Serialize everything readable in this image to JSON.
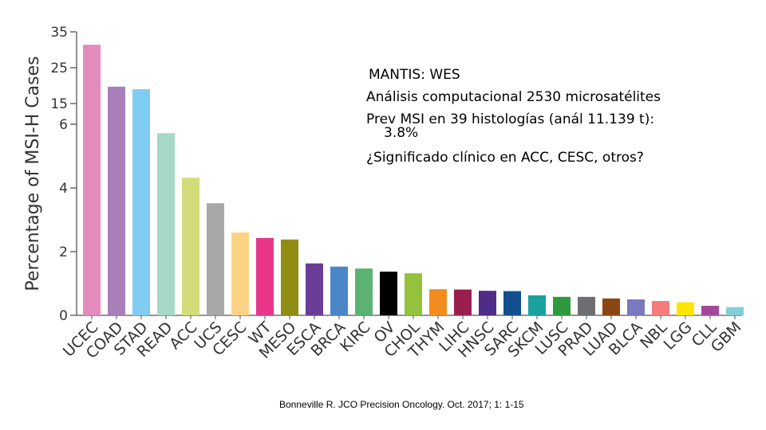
{
  "chart_data": {
    "type": "bar",
    "ylabel": "Percentage of MSI-H Cases",
    "y_scale": "piecewise (0-6 linear, 6-35 compressed)",
    "ylim": [
      0,
      35
    ],
    "y_ticks": [
      0,
      2,
      4,
      6,
      15,
      25,
      35
    ],
    "categories": [
      "UCEC",
      "COAD",
      "STAD",
      "READ",
      "ACC",
      "UCS",
      "CESC",
      "WT",
      "MESO",
      "ESCA",
      "BRCA",
      "KIRC",
      "OV",
      "CHOL",
      "THYM",
      "LIHC",
      "HNSC",
      "SARC",
      "SKCM",
      "LUSC",
      "PRAD",
      "LUAD",
      "BLCA",
      "NBL",
      "LGG",
      "CLL",
      "GBM"
    ],
    "values": [
      31.4,
      19.7,
      19.0,
      5.72,
      4.32,
      3.52,
      2.6,
      2.43,
      2.38,
      1.63,
      1.53,
      1.47,
      1.37,
      1.32,
      0.82,
      0.81,
      0.77,
      0.76,
      0.63,
      0.58,
      0.58,
      0.53,
      0.5,
      0.45,
      0.41,
      0.3,
      0.26
    ],
    "colors": [
      "#e38bbd",
      "#a97fb9",
      "#80cdf3",
      "#a5d8c6",
      "#d4db7a",
      "#a8a8a8",
      "#fcd384",
      "#e8378b",
      "#8f8e12",
      "#6a3d97",
      "#4a86c8",
      "#5bb272",
      "#000000",
      "#95c23d",
      "#f28c1e",
      "#9a1f4f",
      "#4f2c8a",
      "#114f90",
      "#1aa29e",
      "#2c9a3d",
      "#6d6e71",
      "#8b4513",
      "#7a79bf",
      "#f47d7c",
      "#ffe500",
      "#a3499c",
      "#84cdd6"
    ]
  },
  "annotation": {
    "line1": "MANTIS: WES",
    "line2": "Análisis computacional 2530 microsatélites",
    "line3": "Prev MSI en 39 histologías (anál 11.139 t):",
    "line4": "3.8%",
    "line5": "¿Significado clínico en ACC, CESC, otros?"
  },
  "citation": "Bonneville R. JCO Precision Oncology. Oct. 2017; 1: 1-15"
}
